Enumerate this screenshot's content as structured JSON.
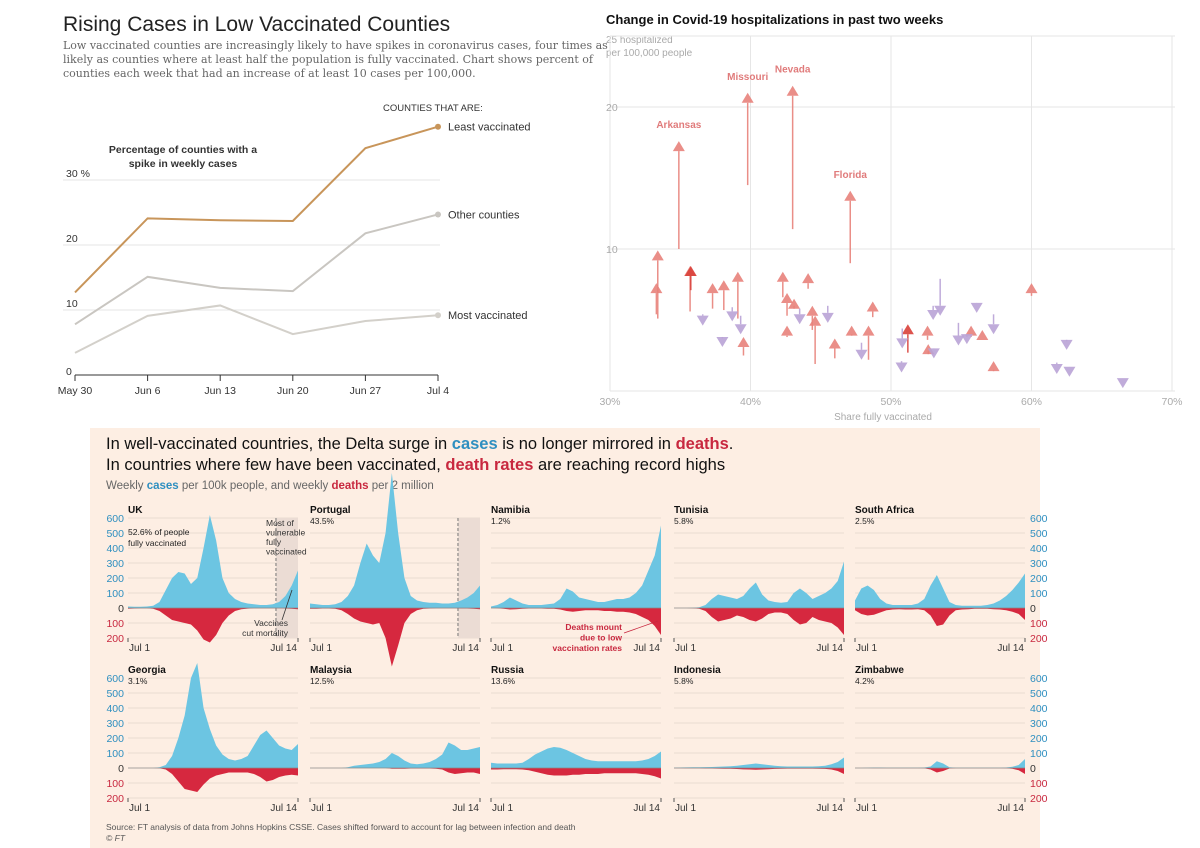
{
  "left_chart": {
    "title": "Rising Cases in Low Vaccinated Counties",
    "subtitle_lines": [
      "Low vaccinated counties are increasingly likely to have spikes in coronavirus cases, four times as",
      "likely as counties where at least half the population is fully vaccinated. Chart shows percent of",
      "counties each week that had an increase of at least 10 cases per 100,000."
    ],
    "legend_heading": "COUNTIES THAT ARE:",
    "annotation_lines": [
      "Percentage of counties with a",
      "spike in weekly cases"
    ]
  },
  "scatter": {
    "title": "Change in Covid-19 hospitalizations in past two weeks",
    "ylabel_lines": [
      "25 hospitalized",
      "per 100,000 people"
    ],
    "xlabel": "Share fully vaccinated"
  },
  "ft": {
    "headline1": {
      "a": "In well-vaccinated countries, the Delta surge in ",
      "cases": "cases",
      "b": " is no longer mirrored in ",
      "deaths": "deaths",
      "c": "."
    },
    "headline2": {
      "a": "In countries where few have been vaccinated, ",
      "death_rates": "death rates",
      "b": " are reaching record highs"
    },
    "subtitle": {
      "a": "Weekly ",
      "cases": "cases",
      "b": " per 100k people, and weekly ",
      "deaths": "deaths",
      "c": " per 2 million"
    },
    "source": "Source: FT analysis of data from Johns Hopkins CSSE. Cases shifted forward to account for lag between infection and death",
    "copyright": "© FT",
    "uk_note": "52.6% of people",
    "uk_note2": "fully vaccinated",
    "annotation_vulnerable": [
      "Most of",
      "vulnerable",
      "fully",
      "vaccinated"
    ],
    "annotation_mortality": [
      "Vaccines",
      "cut mortality"
    ],
    "annotation_deaths": [
      "Deaths mount",
      "due to low",
      "vaccination rates"
    ]
  },
  "colors": {
    "least": "#c8955a",
    "other": "#c9c6c1",
    "most": "#d3d0ca",
    "up_arrow": "#e8827b",
    "up_arrow_dark": "#d9403a",
    "down_arrow": "#b9a3d6",
    "state_label": "#e07b7b",
    "ft_bg": "#fdeee3",
    "cases": "#6cc5e2",
    "deaths": "#d6283f",
    "cases_text": "#2f8fc0",
    "deaths_text": "#c8283f",
    "shade": "#ebdcd4"
  },
  "chart_data": [
    {
      "type": "line",
      "title": "Rising Cases in Low Vaccinated Counties",
      "ylabel": "Percentage of counties with a spike in weekly cases",
      "categories": [
        "May 30",
        "Jun 6",
        "Jun 13",
        "Jun 20",
        "Jun 27",
        "Jul 4"
      ],
      "yticks": [
        {
          "v": 0,
          "label": "0"
        },
        {
          "v": 10,
          "label": "10"
        },
        {
          "v": 20,
          "label": "20"
        },
        {
          "v": 30,
          "label": "30 %"
        }
      ],
      "ylim": [
        0,
        40
      ],
      "grid": true,
      "series": [
        {
          "name": "Least vaccinated",
          "values": [
            12.7,
            24.1,
            23.8,
            23.7,
            34.9,
            38.2
          ]
        },
        {
          "name": "Other counties",
          "values": [
            7.8,
            15.1,
            13.4,
            12.9,
            21.8,
            24.7
          ]
        },
        {
          "name": "Most vaccinated",
          "values": [
            3.4,
            9.1,
            10.7,
            6.3,
            8.3,
            9.2
          ]
        }
      ]
    },
    {
      "type": "scatter",
      "title": "Change in Covid-19 hospitalizations in past two weeks",
      "xlabel": "Share fully vaccinated",
      "ylabel": "hospitalized per 100,000 people",
      "xlim": [
        30,
        70
      ],
      "ylim": [
        0,
        25
      ],
      "xticks": [
        "30%",
        "40%",
        "50%",
        "60%",
        "70%"
      ],
      "yticks": [
        {
          "v": 10,
          "label": "10"
        },
        {
          "v": 20,
          "label": "20"
        },
        {
          "v": 25,
          "label": "25"
        }
      ],
      "grid": true,
      "arrows": [
        {
          "label": "Arkansas",
          "x": 34.9,
          "from": 10.0,
          "to": 17.6
        },
        {
          "label": "Missouri",
          "x": 39.8,
          "from": 14.5,
          "to": 21.0
        },
        {
          "label": "Nevada",
          "x": 43.0,
          "from": 11.4,
          "to": 21.5
        },
        {
          "label": "Florida",
          "x": 47.1,
          "from": 9.0,
          "to": 14.1
        },
        {
          "x": 33.4,
          "from": 5.1,
          "to": 9.9
        },
        {
          "x": 33.3,
          "from": 5.4,
          "to": 7.6
        },
        {
          "x": 35.7,
          "from": 5.6,
          "to": 8.8
        },
        {
          "x": 35.75,
          "from": 7.1,
          "to": 8.8,
          "dark": true
        },
        {
          "x": 37.3,
          "from": 5.8,
          "to": 7.6
        },
        {
          "x": 38.1,
          "from": 5.7,
          "to": 7.8
        },
        {
          "x": 39.1,
          "from": 5.1,
          "to": 8.4
        },
        {
          "x": 39.5,
          "from": 2.5,
          "to": 3.8
        },
        {
          "x": 42.3,
          "from": 6.6,
          "to": 8.4
        },
        {
          "x": 42.6,
          "from": 5.3,
          "to": 6.9
        },
        {
          "x": 43.1,
          "from": 6.0,
          "to": 6.5
        },
        {
          "x": 42.6,
          "from": 3.8,
          "to": 4.6
        },
        {
          "x": 44.1,
          "from": 7.2,
          "to": 8.3
        },
        {
          "x": 44.4,
          "from": 4.3,
          "to": 6.0
        },
        {
          "x": 44.6,
          "from": 1.9,
          "to": 5.3
        },
        {
          "x": 46.0,
          "from": 2.3,
          "to": 3.7
        },
        {
          "x": 47.2,
          "from": 4.0,
          "to": 4.6
        },
        {
          "x": 48.4,
          "from": 2.2,
          "to": 4.6
        },
        {
          "x": 48.7,
          "from": 5.2,
          "to": 6.3
        },
        {
          "x": 51.2,
          "from": 2.7,
          "to": 4.7,
          "dark": true
        },
        {
          "x": 52.6,
          "from": 3.6,
          "to": 4.6
        },
        {
          "x": 52.65,
          "from": 2.8,
          "to": 3.3
        },
        {
          "x": 55.7,
          "from": 3.8,
          "to": 4.6
        },
        {
          "x": 56.5,
          "from": 3.6,
          "to": 4.3
        },
        {
          "x": 57.3,
          "from": 1.5,
          "to": 2.1
        },
        {
          "x": 60.0,
          "from": 6.7,
          "to": 7.6
        },
        {
          "x": 36.6,
          "from": 5.4,
          "to": 4.6
        },
        {
          "x": 38.0,
          "from": 3.7,
          "to": 3.1
        },
        {
          "x": 38.7,
          "from": 5.9,
          "to": 4.9
        },
        {
          "x": 39.3,
          "from": 5.3,
          "to": 4.0
        },
        {
          "x": 43.5,
          "from": 5.8,
          "to": 4.7
        },
        {
          "x": 45.5,
          "from": 6.0,
          "to": 4.8
        },
        {
          "x": 47.9,
          "from": 3.4,
          "to": 2.2
        },
        {
          "x": 50.8,
          "from": 4.4,
          "to": 3.0
        },
        {
          "x": 50.75,
          "from": 2.1,
          "to": 1.3
        },
        {
          "x": 53.0,
          "from": 6.0,
          "to": 5.0
        },
        {
          "x": 53.5,
          "from": 7.9,
          "to": 5.3
        },
        {
          "x": 53.05,
          "from": 3.0,
          "to": 2.3
        },
        {
          "x": 54.8,
          "from": 4.8,
          "to": 3.2
        },
        {
          "x": 55.4,
          "from": 3.8,
          "to": 3.3
        },
        {
          "x": 56.1,
          "from": 6.2,
          "to": 5.5
        },
        {
          "x": 57.3,
          "from": 5.4,
          "to": 4.0
        },
        {
          "x": 61.8,
          "from": 2.0,
          "to": 1.2
        },
        {
          "x": 62.5,
          "from": 3.5,
          "to": 2.9
        },
        {
          "x": 62.7,
          "from": 1.7,
          "to": 1.0
        },
        {
          "x": 66.5,
          "from": 0.9,
          "to": 0.2
        }
      ]
    },
    {
      "type": "area",
      "title": "Weekly cases per 100k people, and weekly deaths per 2 million",
      "x_start_label": "Jul 1",
      "x_end_label": "Jul 14",
      "cases_ticks": [
        "600",
        "500",
        "400",
        "300",
        "200",
        "100",
        "0"
      ],
      "deaths_ticks": [
        "100",
        "200"
      ],
      "ylim_cases": [
        0,
        600
      ],
      "ylim_deaths": [
        0,
        200
      ],
      "grid": true,
      "countries": [
        {
          "name": "UK",
          "vaccinated": "",
          "vaccinated_marker": true,
          "cases": [
            10,
            8,
            8,
            10,
            15,
            40,
            120,
            200,
            240,
            230,
            160,
            200,
            400,
            620,
            450,
            200,
            100,
            60,
            40,
            30,
            25,
            20,
            20,
            25,
            40,
            80,
            150,
            250
          ],
          "deaths": [
            5,
            3,
            2,
            2,
            5,
            20,
            50,
            80,
            90,
            100,
            110,
            150,
            210,
            230,
            180,
            100,
            50,
            20,
            8,
            4,
            2,
            2,
            2,
            2,
            2,
            3,
            5,
            8
          ]
        },
        {
          "name": "Portugal",
          "vaccinated": "43.5%",
          "vaccinated_marker": true,
          "cases": [
            30,
            25,
            20,
            20,
            25,
            40,
            80,
            150,
            300,
            430,
            350,
            300,
            500,
            900,
            500,
            200,
            80,
            50,
            40,
            35,
            35,
            30,
            30,
            35,
            50,
            70,
            100,
            150
          ],
          "deaths": [
            5,
            5,
            3,
            3,
            5,
            15,
            40,
            70,
            90,
            100,
            110,
            100,
            200,
            390,
            250,
            100,
            40,
            15,
            5,
            3,
            2,
            2,
            2,
            2,
            3,
            3,
            5,
            8
          ]
        },
        {
          "name": "Namibia",
          "vaccinated": "1.2%",
          "cases": [
            10,
            20,
            40,
            70,
            50,
            30,
            20,
            20,
            20,
            25,
            30,
            60,
            130,
            110,
            70,
            60,
            50,
            40,
            40,
            50,
            60,
            60,
            70,
            100,
            150,
            250,
            350,
            550
          ],
          "deaths": [
            0,
            2,
            5,
            10,
            8,
            5,
            3,
            3,
            3,
            5,
            5,
            10,
            20,
            25,
            20,
            15,
            15,
            15,
            20,
            20,
            25,
            25,
            30,
            40,
            60,
            80,
            120,
            180
          ]
        },
        {
          "name": "Tunisia",
          "vaccinated": "5.8%",
          "cases": [
            0,
            0,
            0,
            2,
            5,
            20,
            60,
            90,
            80,
            70,
            60,
            80,
            130,
            170,
            90,
            50,
            40,
            35,
            40,
            100,
            130,
            100,
            60,
            80,
            100,
            130,
            180,
            310
          ],
          "deaths": [
            0,
            0,
            0,
            2,
            5,
            20,
            60,
            90,
            80,
            70,
            50,
            60,
            80,
            90,
            70,
            40,
            30,
            30,
            40,
            80,
            110,
            100,
            60,
            80,
            90,
            100,
            130,
            180
          ]
        },
        {
          "name": "South Africa",
          "vaccinated": "2.5%",
          "cases": [
            50,
            130,
            150,
            120,
            60,
            30,
            20,
            20,
            20,
            20,
            30,
            60,
            150,
            220,
            130,
            40,
            20,
            15,
            15,
            15,
            15,
            20,
            30,
            50,
            80,
            120,
            170,
            230
          ],
          "deaths": [
            15,
            40,
            50,
            45,
            30,
            15,
            10,
            8,
            10,
            10,
            8,
            15,
            50,
            120,
            110,
            50,
            15,
            10,
            8,
            5,
            5,
            5,
            8,
            10,
            15,
            25,
            40,
            80
          ]
        },
        {
          "name": "Georgia",
          "vaccinated": "3.1%",
          "cases": [
            0,
            0,
            0,
            0,
            0,
            5,
            20,
            80,
            200,
            350,
            600,
            700,
            400,
            260,
            150,
            90,
            60,
            50,
            60,
            80,
            150,
            220,
            250,
            200,
            150,
            130,
            120,
            160
          ],
          "deaths": [
            0,
            0,
            0,
            0,
            0,
            2,
            10,
            40,
            90,
            140,
            150,
            160,
            110,
            70,
            50,
            40,
            30,
            30,
            30,
            30,
            40,
            60,
            90,
            80,
            60,
            50,
            45,
            50
          ]
        },
        {
          "name": "Malaysia",
          "vaccinated": "12.5%",
          "cases": [
            0,
            0,
            0,
            0,
            0,
            0,
            5,
            15,
            20,
            25,
            30,
            40,
            60,
            100,
            80,
            50,
            30,
            25,
            30,
            40,
            60,
            90,
            170,
            150,
            120,
            120,
            130,
            140
          ],
          "deaths": [
            0,
            0,
            0,
            0,
            0,
            0,
            0,
            0,
            0,
            0,
            0,
            0,
            0,
            5,
            5,
            5,
            3,
            3,
            3,
            3,
            5,
            10,
            30,
            40,
            35,
            30,
            30,
            40
          ]
        },
        {
          "name": "Russia",
          "vaccinated": "13.6%",
          "cases": [
            35,
            30,
            30,
            30,
            30,
            35,
            60,
            90,
            110,
            130,
            140,
            135,
            120,
            100,
            80,
            60,
            50,
            45,
            45,
            45,
            45,
            45,
            45,
            45,
            50,
            60,
            80,
            110
          ],
          "deaths": [
            10,
            10,
            8,
            8,
            8,
            10,
            15,
            25,
            35,
            45,
            50,
            50,
            50,
            45,
            45,
            40,
            40,
            40,
            35,
            35,
            35,
            35,
            35,
            35,
            40,
            45,
            55,
            70
          ]
        },
        {
          "name": "Indonesia",
          "vaccinated": "5.8%",
          "cases": [
            2,
            3,
            4,
            5,
            5,
            6,
            7,
            8,
            10,
            12,
            15,
            20,
            25,
            30,
            25,
            20,
            15,
            12,
            10,
            10,
            10,
            10,
            10,
            12,
            15,
            25,
            40,
            70
          ],
          "deaths": [
            1,
            1,
            2,
            2,
            2,
            3,
            3,
            4,
            5,
            5,
            7,
            9,
            10,
            12,
            10,
            8,
            6,
            5,
            4,
            4,
            4,
            4,
            4,
            5,
            6,
            10,
            20,
            40
          ]
        },
        {
          "name": "Zimbabwe",
          "vaccinated": "4.2%",
          "cases": [
            0,
            0,
            2,
            3,
            3,
            2,
            2,
            2,
            2,
            2,
            2,
            3,
            10,
            45,
            30,
            5,
            2,
            2,
            2,
            2,
            2,
            2,
            2,
            2,
            3,
            8,
            20,
            60
          ],
          "deaths": [
            0,
            0,
            0,
            1,
            1,
            1,
            1,
            1,
            1,
            1,
            1,
            2,
            10,
            30,
            20,
            3,
            1,
            1,
            1,
            1,
            1,
            1,
            1,
            1,
            2,
            5,
            15,
            40
          ]
        }
      ]
    }
  ]
}
